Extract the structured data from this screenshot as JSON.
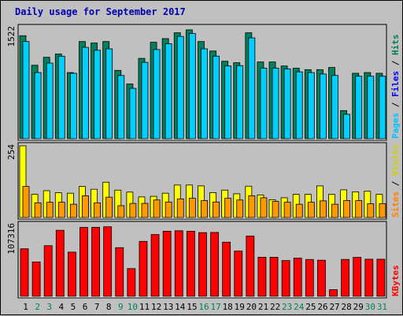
{
  "chart_data": {
    "type": "bar",
    "title": "Daily usage for September 2017",
    "categories": [
      "1",
      "2",
      "3",
      "4",
      "5",
      "6",
      "7",
      "8",
      "9",
      "10",
      "11",
      "12",
      "13",
      "14",
      "15",
      "16",
      "17",
      "18",
      "19",
      "20",
      "21",
      "22",
      "23",
      "24",
      "25",
      "26",
      "27",
      "28",
      "29",
      "30",
      "31"
    ],
    "weekend_days": [
      "2",
      "3",
      "9",
      "10",
      "16",
      "17",
      "23",
      "24",
      "30",
      "31"
    ],
    "top_panel": {
      "max_label": "1522",
      "max_value": 1522,
      "series": [
        {
          "name": "Hits",
          "color": "#00805c",
          "values": [
            1411,
            1006,
            1115,
            1160,
            906,
            1331,
            1311,
            1331,
            936,
            750,
            1100,
            1321,
            1371,
            1451,
            1491,
            1331,
            1201,
            1061,
            1041,
            1451,
            1051,
            1051,
            996,
            966,
            946,
            946,
            976,
            385,
            896,
            906,
            896
          ]
        },
        {
          "name": "Files",
          "color": "#00d0ff",
          "values": [
            1331,
            906,
            1036,
            1130,
            896,
            1251,
            1211,
            1231,
            866,
            690,
            1046,
            1221,
            1301,
            1401,
            1441,
            1231,
            1131,
            996,
            1001,
            1381,
            966,
            966,
            956,
            916,
            906,
            886,
            866,
            335,
            856,
            856,
            856
          ]
        }
      ]
    },
    "middle_panel": {
      "max_label": "254",
      "max_value": 254,
      "series": [
        {
          "name": "Visits",
          "color": "#ffff00",
          "values": [
            254,
            82,
            95,
            88,
            86,
            110,
            100,
            125,
            97,
            90,
            73,
            75,
            86,
            115,
            115,
            112,
            88,
            97,
            84,
            111,
            80,
            63,
            70,
            82,
            82,
            112,
            82,
            98,
            91,
            93,
            82
          ]
        },
        {
          "name": "Sites",
          "color": "#ff9900",
          "values": [
            110,
            52,
            54,
            54,
            47,
            77,
            52,
            72,
            42,
            50,
            50,
            62,
            55,
            66,
            68,
            60,
            55,
            68,
            62,
            77,
            70,
            57,
            54,
            47,
            54,
            59,
            47,
            60,
            60,
            49,
            49
          ]
        }
      ]
    },
    "bottom_panel": {
      "max_label": "107316",
      "max_value": 107316,
      "series": [
        {
          "name": "KBytes",
          "color": "#ff0000",
          "values": [
            71100,
            51400,
            75800,
            98800,
            66100,
            103100,
            103200,
            104100,
            72800,
            41500,
            82200,
            92400,
            97400,
            98100,
            97400,
            95300,
            95600,
            81000,
            67700,
            90100,
            58500,
            58500,
            53500,
            57100,
            55100,
            54000,
            9900,
            55200,
            58300,
            55500,
            55500
          ]
        }
      ]
    },
    "side_labels": {
      "top": [
        "Pages",
        "Files",
        "Hits"
      ],
      "top_colors": [
        "#00c0ff",
        "#0000ff",
        "#00805c"
      ],
      "middle": [
        "Sites",
        "Visits"
      ],
      "middle_colors": [
        "#ff8000",
        "#d0d000"
      ],
      "bottom": [
        "KBytes"
      ],
      "bottom_colors": [
        "#ff0000"
      ]
    },
    "separator": " / ",
    "colors": {
      "background": "#c0c0c0",
      "title": "#0000b0",
      "weekday_tick": "#000000",
      "weekend_tick": "#00805c",
      "panel_border": "#000000"
    }
  }
}
